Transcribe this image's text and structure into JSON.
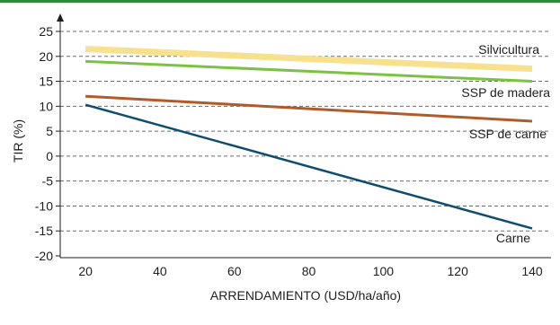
{
  "chart_data": {
    "type": "line",
    "title": "",
    "xlabel": "ARRENDAMIENTO (USD/ha/año)",
    "ylabel": "TIR (%)",
    "xlim": [
      12,
      144
    ],
    "ylim": [
      -20,
      25
    ],
    "xticks": [
      20,
      40,
      60,
      80,
      100,
      120,
      140
    ],
    "yticks": [
      25,
      20,
      15,
      10,
      5,
      0,
      -5,
      -10,
      -15,
      -20
    ],
    "grid": "horizontal dashed",
    "legend": "none (series labeled directly at line ends)",
    "colors": {
      "top_rule": "#2e8b3a",
      "axis": "#1e1e1e",
      "grid": "#6b6b6b"
    },
    "series": [
      {
        "name": "Silvicultura",
        "color": "#f7e08e",
        "x": [
          20,
          140
        ],
        "y": [
          21.5,
          17.5
        ]
      },
      {
        "name": "SSP de madera",
        "color": "#7cc242",
        "x": [
          20,
          140
        ],
        "y": [
          19,
          15
        ]
      },
      {
        "name": "SSP de carne",
        "color": "#b25a28",
        "x": [
          20,
          140
        ],
        "y": [
          12,
          7
        ]
      },
      {
        "name": "Carne",
        "color": "#0e4d6e",
        "x": [
          20,
          140
        ],
        "y": [
          10.3,
          -14.5
        ]
      }
    ]
  }
}
